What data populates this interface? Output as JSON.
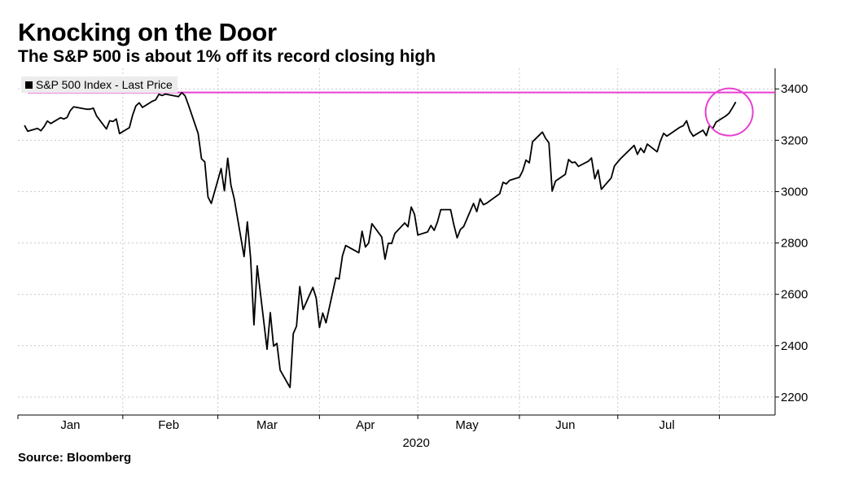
{
  "title": "Knocking on the Door",
  "subtitle": "The S&P 500 is about 1% off its record closing high",
  "source": "Source: Bloomberg",
  "colors": {
    "series": "#000000",
    "record_line": "#e83fd2",
    "grid": "#c8c8c8"
  },
  "chart_data": {
    "type": "line",
    "series": [
      {
        "name": "S&P 500 Index - Last Price",
        "points": [
          [
            "2020-01-02",
            3258
          ],
          [
            "2020-01-03",
            3235
          ],
          [
            "2020-01-06",
            3246
          ],
          [
            "2020-01-07",
            3237
          ],
          [
            "2020-01-08",
            3253
          ],
          [
            "2020-01-09",
            3275
          ],
          [
            "2020-01-10",
            3265
          ],
          [
            "2020-01-13",
            3288
          ],
          [
            "2020-01-14",
            3283
          ],
          [
            "2020-01-15",
            3289
          ],
          [
            "2020-01-16",
            3316
          ],
          [
            "2020-01-17",
            3330
          ],
          [
            "2020-01-21",
            3321
          ],
          [
            "2020-01-22",
            3321
          ],
          [
            "2020-01-23",
            3325
          ],
          [
            "2020-01-24",
            3295
          ],
          [
            "2020-01-27",
            3244
          ],
          [
            "2020-01-28",
            3276
          ],
          [
            "2020-01-29",
            3273
          ],
          [
            "2020-01-30",
            3283
          ],
          [
            "2020-01-31",
            3226
          ],
          [
            "2020-02-03",
            3249
          ],
          [
            "2020-02-04",
            3298
          ],
          [
            "2020-02-05",
            3334
          ],
          [
            "2020-02-06",
            3346
          ],
          [
            "2020-02-07",
            3328
          ],
          [
            "2020-02-10",
            3352
          ],
          [
            "2020-02-11",
            3357
          ],
          [
            "2020-02-12",
            3379
          ],
          [
            "2020-02-13",
            3374
          ],
          [
            "2020-02-14",
            3380
          ],
          [
            "2020-02-18",
            3370
          ],
          [
            "2020-02-19",
            3386
          ],
          [
            "2020-02-20",
            3373
          ],
          [
            "2020-02-21",
            3338
          ],
          [
            "2020-02-24",
            3226
          ],
          [
            "2020-02-25",
            3128
          ],
          [
            "2020-02-26",
            3116
          ],
          [
            "2020-02-27",
            2979
          ],
          [
            "2020-02-28",
            2954
          ],
          [
            "2020-03-02",
            3090
          ],
          [
            "2020-03-03",
            3003
          ],
          [
            "2020-03-04",
            3130
          ],
          [
            "2020-03-05",
            3024
          ],
          [
            "2020-03-06",
            2972
          ],
          [
            "2020-03-09",
            2747
          ],
          [
            "2020-03-10",
            2882
          ],
          [
            "2020-03-11",
            2741
          ],
          [
            "2020-03-12",
            2481
          ],
          [
            "2020-03-13",
            2711
          ],
          [
            "2020-03-16",
            2386
          ],
          [
            "2020-03-17",
            2529
          ],
          [
            "2020-03-18",
            2398
          ],
          [
            "2020-03-19",
            2409
          ],
          [
            "2020-03-20",
            2305
          ],
          [
            "2020-03-23",
            2237
          ],
          [
            "2020-03-24",
            2447
          ],
          [
            "2020-03-25",
            2476
          ],
          [
            "2020-03-26",
            2630
          ],
          [
            "2020-03-27",
            2541
          ],
          [
            "2020-03-30",
            2627
          ],
          [
            "2020-03-31",
            2585
          ],
          [
            "2020-04-01",
            2471
          ],
          [
            "2020-04-02",
            2527
          ],
          [
            "2020-04-03",
            2489
          ],
          [
            "2020-04-06",
            2664
          ],
          [
            "2020-04-07",
            2660
          ],
          [
            "2020-04-08",
            2750
          ],
          [
            "2020-04-09",
            2790
          ],
          [
            "2020-04-13",
            2762
          ],
          [
            "2020-04-14",
            2846
          ],
          [
            "2020-04-15",
            2784
          ],
          [
            "2020-04-16",
            2800
          ],
          [
            "2020-04-17",
            2875
          ],
          [
            "2020-04-20",
            2823
          ],
          [
            "2020-04-21",
            2737
          ],
          [
            "2020-04-22",
            2799
          ],
          [
            "2020-04-23",
            2798
          ],
          [
            "2020-04-24",
            2837
          ],
          [
            "2020-04-27",
            2878
          ],
          [
            "2020-04-28",
            2863
          ],
          [
            "2020-04-29",
            2940
          ],
          [
            "2020-04-30",
            2912
          ],
          [
            "2020-05-01",
            2831
          ],
          [
            "2020-05-04",
            2843
          ],
          [
            "2020-05-05",
            2868
          ],
          [
            "2020-05-06",
            2849
          ],
          [
            "2020-05-07",
            2882
          ],
          [
            "2020-05-08",
            2930
          ],
          [
            "2020-05-11",
            2930
          ],
          [
            "2020-05-12",
            2870
          ],
          [
            "2020-05-13",
            2820
          ],
          [
            "2020-05-14",
            2853
          ],
          [
            "2020-05-15",
            2864
          ],
          [
            "2020-05-18",
            2954
          ],
          [
            "2020-05-19",
            2922
          ],
          [
            "2020-05-20",
            2972
          ],
          [
            "2020-05-21",
            2949
          ],
          [
            "2020-05-22",
            2955
          ],
          [
            "2020-05-26",
            2992
          ],
          [
            "2020-05-27",
            3036
          ],
          [
            "2020-05-28",
            3030
          ],
          [
            "2020-05-29",
            3044
          ],
          [
            "2020-06-01",
            3056
          ],
          [
            "2020-06-02",
            3081
          ],
          [
            "2020-06-03",
            3123
          ],
          [
            "2020-06-04",
            3112
          ],
          [
            "2020-06-05",
            3194
          ],
          [
            "2020-06-08",
            3232
          ],
          [
            "2020-06-09",
            3207
          ],
          [
            "2020-06-10",
            3190
          ],
          [
            "2020-06-11",
            3002
          ],
          [
            "2020-06-12",
            3041
          ],
          [
            "2020-06-15",
            3067
          ],
          [
            "2020-06-16",
            3125
          ],
          [
            "2020-06-17",
            3113
          ],
          [
            "2020-06-18",
            3115
          ],
          [
            "2020-06-19",
            3098
          ],
          [
            "2020-06-22",
            3118
          ],
          [
            "2020-06-23",
            3131
          ],
          [
            "2020-06-24",
            3050
          ],
          [
            "2020-06-25",
            3084
          ],
          [
            "2020-06-26",
            3009
          ],
          [
            "2020-06-29",
            3053
          ],
          [
            "2020-06-30",
            3100
          ],
          [
            "2020-07-01",
            3116
          ],
          [
            "2020-07-02",
            3130
          ],
          [
            "2020-07-06",
            3180
          ],
          [
            "2020-07-07",
            3145
          ],
          [
            "2020-07-08",
            3169
          ],
          [
            "2020-07-09",
            3152
          ],
          [
            "2020-07-10",
            3185
          ],
          [
            "2020-07-13",
            3155
          ],
          [
            "2020-07-14",
            3197
          ],
          [
            "2020-07-15",
            3227
          ],
          [
            "2020-07-16",
            3216
          ],
          [
            "2020-07-17",
            3225
          ],
          [
            "2020-07-20",
            3251
          ],
          [
            "2020-07-21",
            3257
          ],
          [
            "2020-07-22",
            3276
          ],
          [
            "2020-07-23",
            3236
          ],
          [
            "2020-07-24",
            3216
          ],
          [
            "2020-07-27",
            3239
          ],
          [
            "2020-07-28",
            3218
          ],
          [
            "2020-07-29",
            3258
          ],
          [
            "2020-07-30",
            3246
          ],
          [
            "2020-07-31",
            3271
          ],
          [
            "2020-08-03",
            3295
          ],
          [
            "2020-08-04",
            3306
          ],
          [
            "2020-08-05",
            3327
          ],
          [
            "2020-08-06",
            3349
          ]
        ]
      }
    ],
    "reference_lines": [
      {
        "y": 3386,
        "color": "#e83fd2"
      }
    ],
    "highlight": {
      "type": "circle",
      "x": "2020-08-04",
      "y": 3310,
      "color": "#e83fd2"
    },
    "x_ticks": [
      {
        "label": "Jan",
        "date": "2020-01-16"
      },
      {
        "label": "Feb",
        "date": "2020-02-15"
      },
      {
        "label": "Mar",
        "date": "2020-03-16"
      },
      {
        "label": "Apr",
        "date": "2020-04-15"
      },
      {
        "label": "May",
        "date": "2020-05-16"
      },
      {
        "label": "Jun",
        "date": "2020-06-15"
      },
      {
        "label": "Jul",
        "date": "2020-07-16"
      }
    ],
    "x_separators": [
      "2020-02-01",
      "2020-03-01",
      "2020-04-01",
      "2020-05-01",
      "2020-06-01",
      "2020-07-01",
      "2020-08-01"
    ],
    "xlabel": "2020",
    "xlim": [
      "2019-12-31",
      "2020-08-18"
    ],
    "y_ticks": [
      2200,
      2400,
      2600,
      2800,
      3000,
      3200,
      3400
    ],
    "ylim": [
      2130,
      3480
    ],
    "y_axis_side": "right",
    "grid": true,
    "legend_position": "top-left"
  }
}
